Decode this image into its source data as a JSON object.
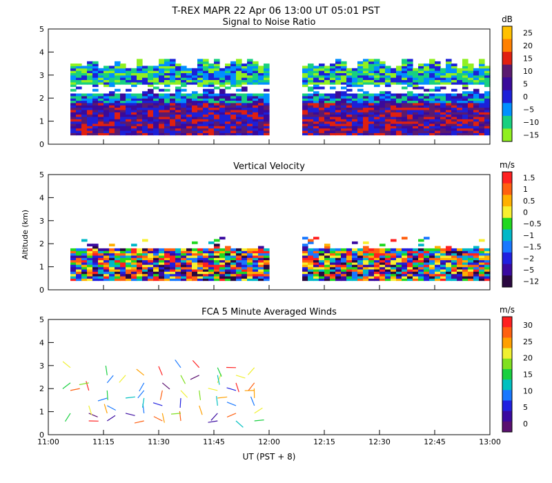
{
  "header": {
    "title": "T-REX  MAPR 22 Apr 06  13:00 UT  05:01  PST"
  },
  "xaxis": {
    "label": "UT  (PST + 8)",
    "ticks": [
      "11:00",
      "11:15",
      "11:30",
      "11:45",
      "12:00",
      "12:15",
      "12:30",
      "12:45",
      "13:00"
    ]
  },
  "shared_ylabel": "Altitude (km)",
  "chart_data": [
    {
      "type": "heatmap",
      "title": "Signal to Noise Ratio",
      "units": "dB",
      "xlabel": "UT  (PST + 8)",
      "ylabel": "Altitude (km)",
      "xlim": [
        "11:00",
        "13:00"
      ],
      "ylim": [
        0,
        5
      ],
      "yticks": [
        "0",
        "1",
        "2",
        "3",
        "4",
        "5"
      ],
      "data_gap": [
        "12:00",
        "12:08"
      ],
      "data_start": "11:06",
      "data_end": "13:00",
      "colorbar": {
        "labels": [
          "25",
          "20",
          "15",
          "10",
          "5",
          "0",
          "−5",
          "−10",
          "−15"
        ],
        "colors": [
          "#ffc000",
          "#ff8000",
          "#e02010",
          "#5a1a70",
          "#3a0a9a",
          "#1c20d8",
          "#0090ff",
          "#18d080",
          "#90f020"
        ]
      }
    },
    {
      "type": "heatmap",
      "title": "Vertical Velocity",
      "units": "m/s",
      "xlabel": "UT  (PST + 8)",
      "ylabel": "Altitude (km)",
      "xlim": [
        "11:00",
        "13:00"
      ],
      "ylim": [
        0,
        5
      ],
      "yticks": [
        "0",
        "1",
        "2",
        "3",
        "4",
        "5"
      ],
      "data_gap": [
        "12:00",
        "12:08"
      ],
      "data_start": "11:06",
      "data_end": "13:00",
      "colorbar": {
        "labels": [
          "1.5",
          "1",
          "0.5",
          "0",
          "−0.5",
          "−1",
          "−1.5",
          "−2",
          "−5",
          "−12"
        ],
        "colors": [
          "#ff2020",
          "#ff6010",
          "#ffb000",
          "#f8f030",
          "#20d820",
          "#00b8c8",
          "#1878ff",
          "#2020e0",
          "#3a0aa0",
          "#2a0840"
        ]
      }
    },
    {
      "type": "scatter",
      "title": "FCA 5 Minute Averaged Winds",
      "units": "m/s",
      "xlabel": "UT  (PST + 8)",
      "ylabel": "Altitude (km)",
      "xlim": [
        "11:00",
        "13:00"
      ],
      "ylim": [
        0,
        5
      ],
      "yticks": [
        "0",
        "1",
        "2",
        "3",
        "4",
        "5"
      ],
      "colorbar": {
        "labels": [
          "30",
          "25",
          "20",
          "15",
          "10",
          "5",
          "0"
        ],
        "colors": [
          "#ff2020",
          "#ff6010",
          "#ffa000",
          "#f0f030",
          "#80e020",
          "#18d040",
          "#00c0c0",
          "#1878ff",
          "#2020e0",
          "#3a0aa0",
          "#5a1070"
        ]
      }
    }
  ]
}
